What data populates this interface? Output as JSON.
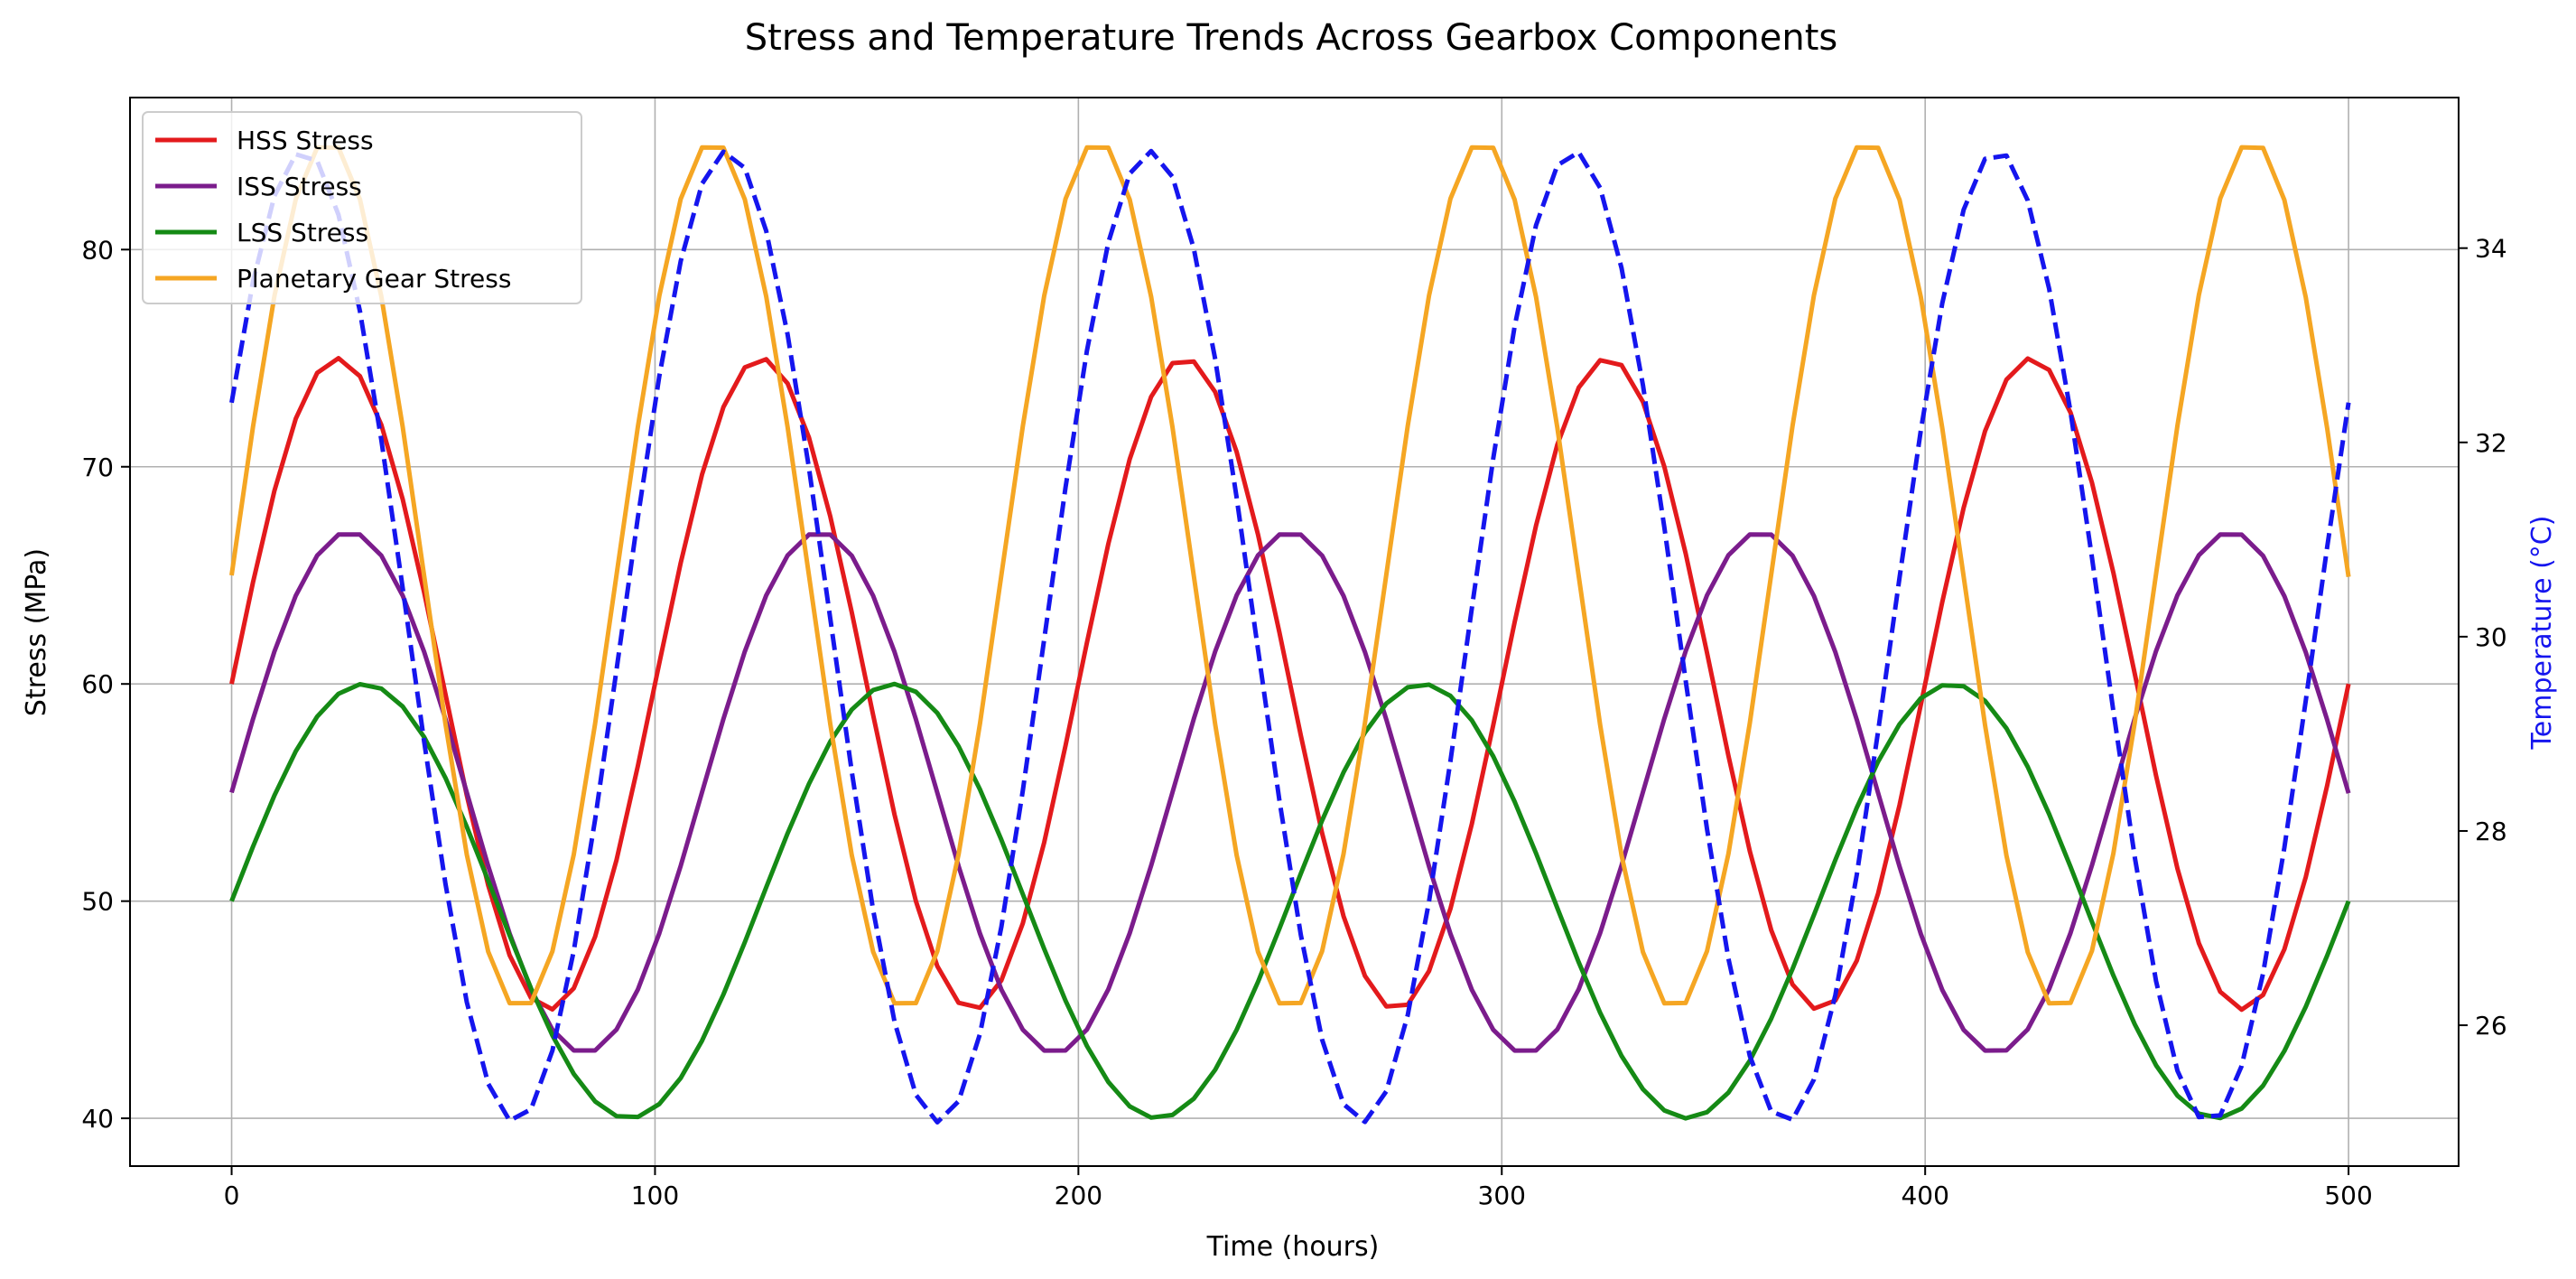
{
  "chart_data": {
    "type": "line",
    "title": "Stress and Temperature Trends Across Gearbox Components",
    "xlabel": "Time (hours)",
    "ylabel": "Stress (MPa)",
    "y2label": "Temperature (°C)",
    "xlim": [
      -24,
      526
    ],
    "ylim": [
      37.8,
      87.0
    ],
    "y2lim": [
      24.55,
      35.55
    ],
    "xticks": [
      0,
      100,
      200,
      300,
      400,
      500
    ],
    "yticks": [
      40,
      50,
      60,
      70,
      80
    ],
    "y2ticks": [
      26,
      28,
      30,
      32,
      34
    ],
    "grid": true,
    "legend_position": "top-left",
    "series": [
      {
        "name": "HSS Stress",
        "axis": "left",
        "color": "#e31a1c",
        "style": "solid",
        "model": {
          "offset": 60,
          "amplitude": 15,
          "period_hours": 100,
          "phase_hours": 0
        }
      },
      {
        "name": "ISS Stress",
        "axis": "left",
        "color": "#7b1c8c",
        "style": "solid",
        "model": {
          "offset": 55,
          "amplitude": 12,
          "period_hours": 111.1,
          "phase_hours": 0
        }
      },
      {
        "name": "LSS Stress",
        "axis": "left",
        "color": "#158a15",
        "style": "solid",
        "model": {
          "offset": 50,
          "amplitude": 10,
          "period_hours": 125,
          "phase_hours": 0
        }
      },
      {
        "name": "Planetary Gear Stress",
        "axis": "left",
        "color": "#f5a623",
        "style": "solid",
        "model": {
          "offset": 65,
          "amplitude": 20,
          "period_hours": 90.9,
          "phase_hours": 0
        }
      },
      {
        "name": "Temperature",
        "axis": "right",
        "color": "#1515ee",
        "style": "dashed",
        "model": {
          "offset": 30,
          "amplitude": 5,
          "period_hours": 100,
          "phase_hours": 8
        }
      }
    ],
    "x_sample_start": 0,
    "x_sample_end": 500,
    "x_sample_count": 100
  }
}
